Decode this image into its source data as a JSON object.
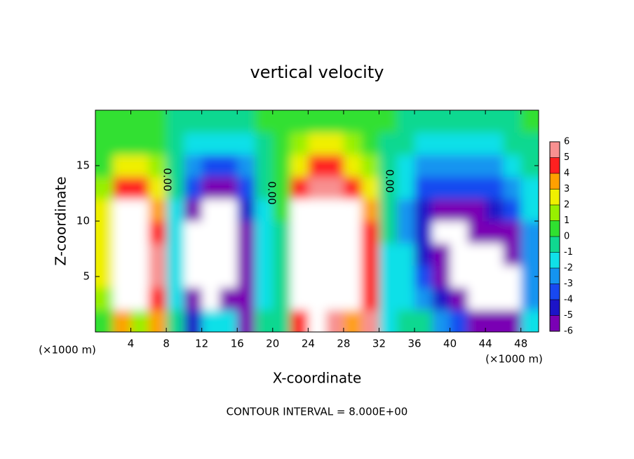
{
  "chart_data": {
    "type": "contour",
    "title": "vertical velocity",
    "x_label": "X-coordinate",
    "y_label": "Z-coordinate",
    "x_unit": "(×1000 m)",
    "contour_label": "0.00",
    "footer": "CONTOUR INTERVAL = 8.000E+00",
    "xlim": [
      0,
      50
    ],
    "ylim": [
      0,
      20
    ],
    "xticks": [
      4,
      8,
      12,
      16,
      20,
      24,
      28,
      32,
      36,
      40,
      44,
      48
    ],
    "yticks": [
      5,
      10,
      15
    ],
    "x": [
      1,
      3,
      5,
      7,
      9,
      11,
      13,
      15,
      17,
      19,
      21,
      23,
      25,
      27,
      29,
      31,
      33,
      35,
      37,
      39,
      41,
      43,
      45,
      47,
      49
    ],
    "y": [
      1,
      3,
      5,
      7,
      9,
      11,
      13,
      15,
      17,
      19
    ],
    "z": [
      [
        1,
        4,
        2,
        4,
        0,
        -4,
        -1,
        -1,
        -5,
        0,
        0,
        5,
        8,
        6,
        4,
        6,
        -1,
        0,
        0,
        -2,
        -3,
        -5,
        -5,
        -5,
        -1
      ],
      [
        2,
        8,
        8,
        5,
        -1,
        -6,
        -8,
        -5,
        -5,
        -1,
        0,
        8,
        8,
        8,
        8,
        5,
        -1,
        -1,
        -2,
        -4,
        -5,
        -8,
        -8,
        -8,
        -2
      ],
      [
        3,
        8,
        8,
        6,
        -1,
        -8,
        -8,
        -8,
        -5,
        -1,
        0,
        8,
        8,
        8,
        8,
        5,
        -1,
        -1,
        -3,
        -5,
        -8,
        -8,
        -8,
        -8,
        -2
      ],
      [
        3,
        8,
        8,
        6,
        -1,
        -8,
        -8,
        -8,
        -5,
        -1,
        0,
        8,
        8,
        8,
        8,
        5,
        -1,
        -1,
        -4,
        -5,
        -8,
        -8,
        -8,
        -6,
        -2
      ],
      [
        3,
        8,
        8,
        5,
        -1,
        -7,
        -8,
        -8,
        -5,
        -1,
        0,
        8,
        8,
        8,
        8,
        5,
        0,
        -2,
        -4,
        -8,
        -8,
        -6,
        -5,
        -5,
        -2
      ],
      [
        3,
        7,
        7,
        4,
        -1,
        -5,
        -8,
        -7,
        -4,
        -1,
        1,
        7,
        8,
        8,
        7,
        4,
        0,
        -2,
        -4,
        -5,
        -5,
        -5,
        -4,
        -3,
        -1
      ],
      [
        2,
        5,
        5,
        3,
        0,
        -3,
        -5,
        -5,
        -3,
        0,
        1,
        5,
        6,
        6,
        5,
        3,
        0,
        -1,
        -3,
        -3,
        -3,
        -3,
        -3,
        -2,
        -1
      ],
      [
        1,
        3,
        3,
        2,
        0,
        -2,
        -3,
        -3,
        -2,
        0,
        1,
        3,
        5,
        5,
        3,
        2,
        0,
        -1,
        -2,
        -2,
        -2,
        -2,
        -2,
        -1,
        0
      ],
      [
        1,
        1,
        1,
        1,
        0,
        -1,
        -1,
        -1,
        -1,
        0,
        1,
        2,
        3,
        3,
        2,
        1,
        0,
        0,
        -1,
        -1,
        -1,
        -1,
        -1,
        0,
        0
      ],
      [
        1,
        1,
        1,
        1,
        0,
        0,
        0,
        0,
        0,
        1,
        1,
        1,
        1,
        1,
        1,
        1,
        1,
        0,
        0,
        0,
        0,
        0,
        0,
        0,
        1
      ]
    ],
    "levels": [
      -6,
      -5,
      -4,
      -3,
      -2,
      -1,
      0,
      1,
      2,
      3,
      4,
      5,
      6
    ],
    "colors": [
      "#7a00b4",
      "#1c14c8",
      "#1848f0",
      "#1494f0",
      "#10e0e8",
      "#10d890",
      "#30e030",
      "#98f000",
      "#f0f000",
      "#ffa000",
      "#ff2020",
      "#f89090"
    ],
    "out_of_range_color": "#ffffff"
  }
}
